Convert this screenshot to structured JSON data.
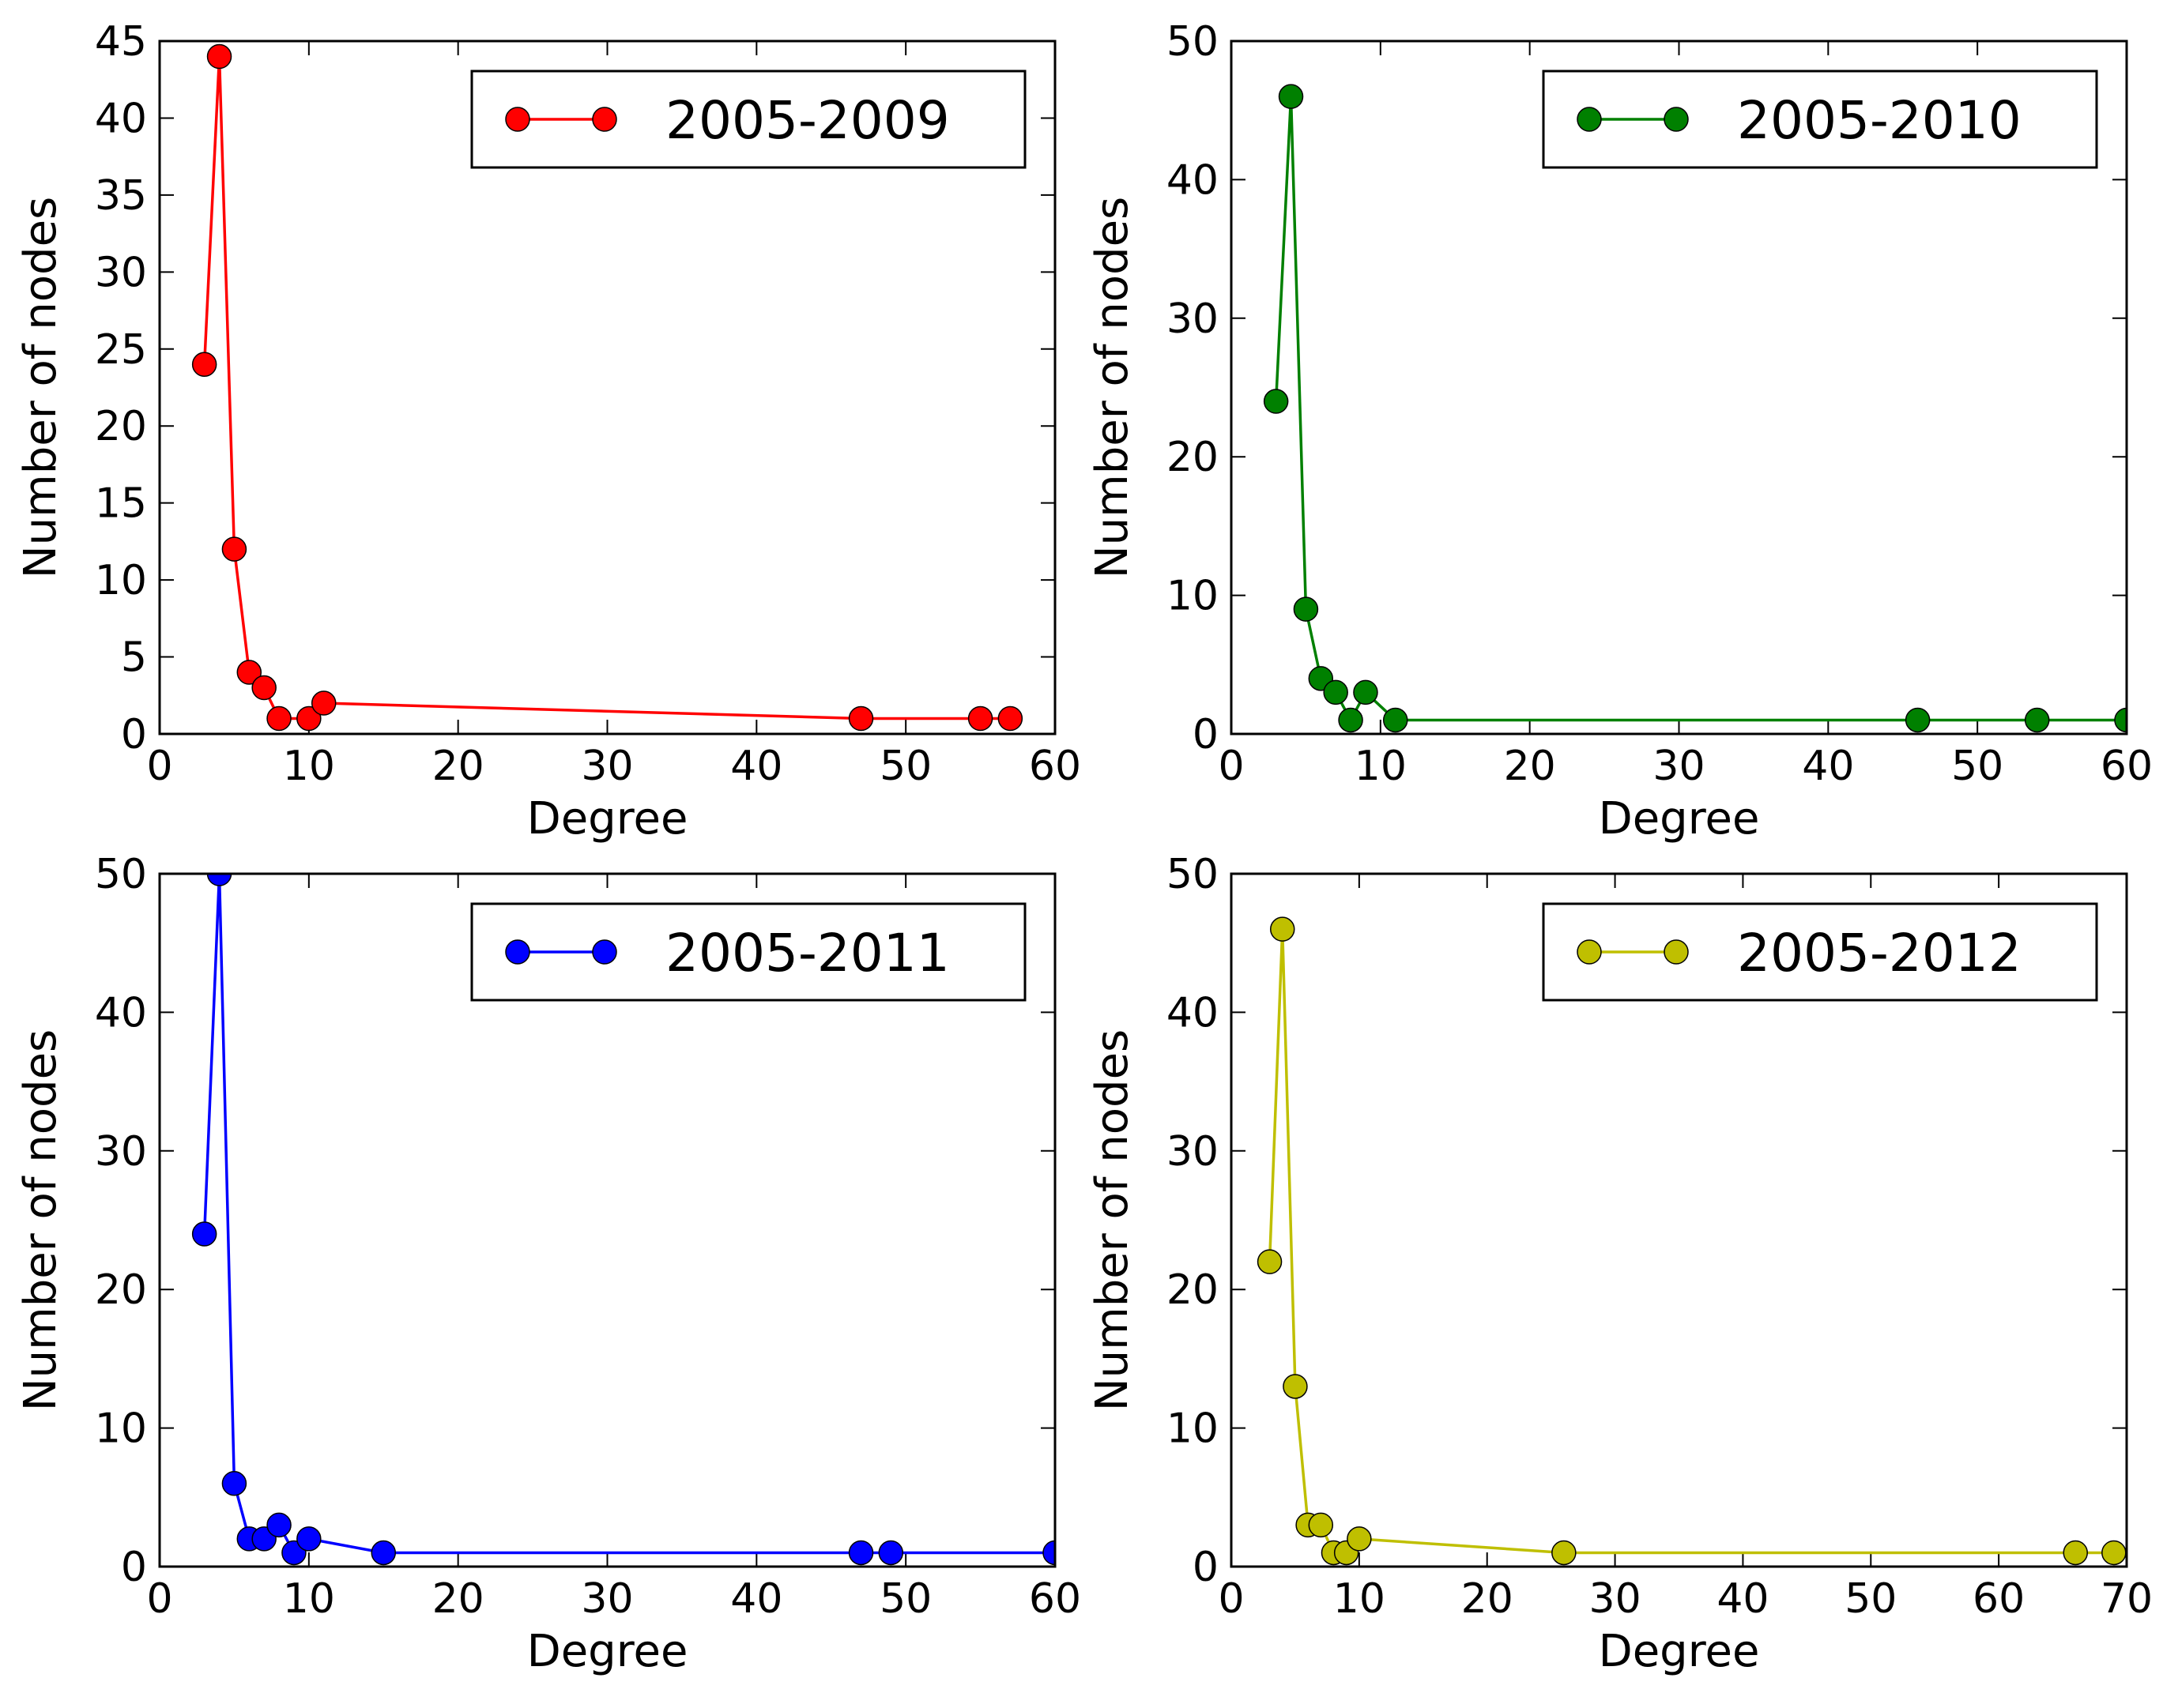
{
  "chart_data": [
    {
      "type": "line",
      "title": "",
      "xlabel": "Degree",
      "ylabel": "Number of nodes",
      "xlim": [
        0,
        60
      ],
      "ylim": [
        0,
        45
      ],
      "xticks": [
        0,
        10,
        20,
        30,
        40,
        50,
        60
      ],
      "yticks": [
        0,
        5,
        10,
        15,
        20,
        25,
        30,
        35,
        40,
        45
      ],
      "grid": false,
      "legend_position": "top-right",
      "series": [
        {
          "name": "2005-2009",
          "color": "#ff0000",
          "marker": "circle",
          "x": [
            3,
            4,
            5,
            6,
            7,
            8,
            10,
            11,
            47,
            55,
            57
          ],
          "y": [
            24,
            44,
            12,
            4,
            3,
            1,
            1,
            2,
            1,
            1,
            1
          ]
        }
      ]
    },
    {
      "type": "line",
      "title": "",
      "xlabel": "Degree",
      "ylabel": "Number of nodes",
      "xlim": [
        0,
        60
      ],
      "ylim": [
        0,
        50
      ],
      "xticks": [
        0,
        10,
        20,
        30,
        40,
        50,
        60
      ],
      "yticks": [
        0,
        10,
        20,
        30,
        40,
        50
      ],
      "grid": false,
      "legend_position": "top-right",
      "series": [
        {
          "name": "2005-2010",
          "color": "#008000",
          "marker": "circle",
          "x": [
            3,
            4,
            5,
            6,
            7,
            8,
            9,
            11,
            46,
            54,
            60
          ],
          "y": [
            24,
            46,
            9,
            4,
            3,
            1,
            3,
            1,
            1,
            1,
            1
          ]
        }
      ]
    },
    {
      "type": "line",
      "title": "",
      "xlabel": "Degree",
      "ylabel": "Number of nodes",
      "xlim": [
        0,
        60
      ],
      "ylim": [
        0,
        50
      ],
      "xticks": [
        0,
        10,
        20,
        30,
        40,
        50,
        60
      ],
      "yticks": [
        0,
        10,
        20,
        30,
        40,
        50
      ],
      "grid": false,
      "legend_position": "top-right",
      "series": [
        {
          "name": "2005-2011",
          "color": "#0000ff",
          "marker": "circle",
          "x": [
            3,
            4,
            5,
            6,
            7,
            8,
            9,
            10,
            15,
            47,
            49,
            60
          ],
          "y": [
            24,
            50,
            6,
            2,
            2,
            3,
            1,
            2,
            1,
            1,
            1,
            1
          ]
        }
      ]
    },
    {
      "type": "line",
      "title": "",
      "xlabel": "Degree",
      "ylabel": "Number of nodes",
      "xlim": [
        0,
        70
      ],
      "ylim": [
        0,
        50
      ],
      "xticks": [
        0,
        10,
        20,
        30,
        40,
        50,
        60,
        70
      ],
      "yticks": [
        0,
        10,
        20,
        30,
        40,
        50
      ],
      "grid": false,
      "legend_position": "top-right",
      "series": [
        {
          "name": "2005-2012",
          "color": "#bfbf00",
          "marker": "circle",
          "x": [
            3,
            4,
            5,
            6,
            7,
            8,
            9,
            10,
            26,
            66,
            69
          ],
          "y": [
            22,
            46,
            13,
            3,
            3,
            1,
            1,
            2,
            1,
            1,
            1
          ]
        }
      ]
    }
  ]
}
